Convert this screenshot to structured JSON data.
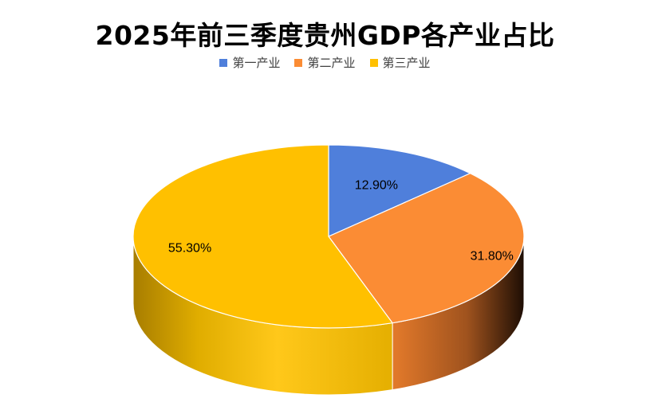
{
  "chart_data": {
    "type": "pie",
    "title": "2025年前三季度贵州GDP各产业占比",
    "categories": [
      "第一产业",
      "第二产业",
      "第三产业"
    ],
    "values": [
      12.9,
      31.8,
      55.3
    ],
    "data_labels": [
      "12.90%",
      "31.80%",
      "55.30%"
    ],
    "colors": [
      "#4F7FDB",
      "#FB8C34",
      "#FFC000"
    ],
    "side_colors": [
      "#3A63AE",
      "#C56A26",
      "#C99A00"
    ],
    "legend_position": "top",
    "style": "3d"
  }
}
